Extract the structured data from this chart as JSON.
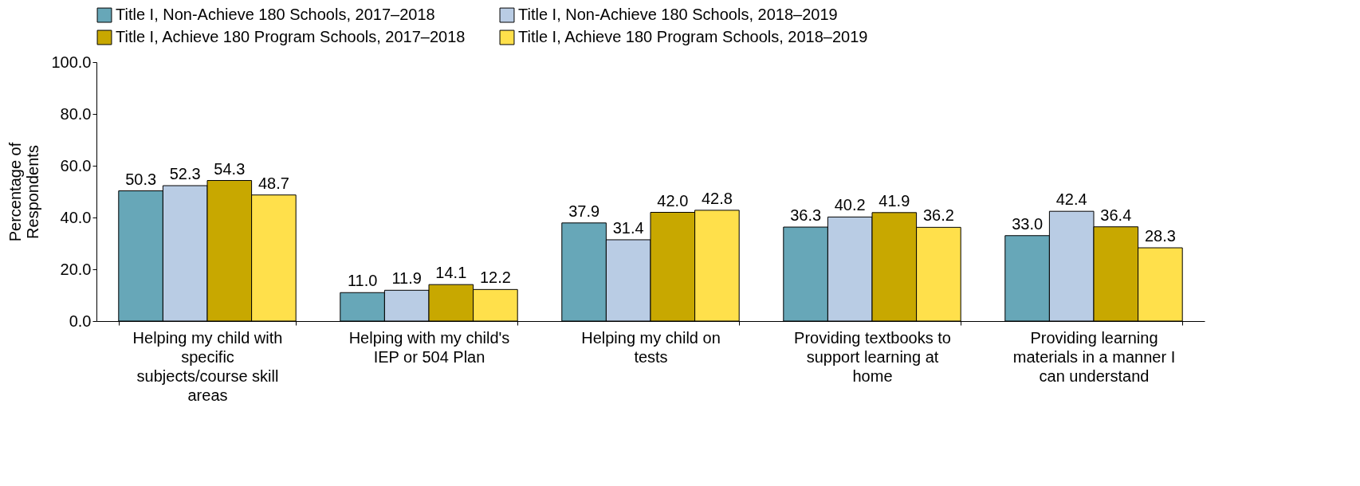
{
  "chart_data": {
    "type": "bar",
    "ylabel": "Percentage of Respondents",
    "categories": [
      "Helping my child with specific subjects/course skill areas",
      "Helping with my child's IEP or 504 Plan",
      "Helping my child on tests",
      "Providing textbooks to support learning at home",
      "Providing learning materials in a manner I can understand"
    ],
    "series": [
      {
        "name": "Title I, Non-Achieve 180 Schools, 2017–2018",
        "color": "#67a7b8",
        "values": [
          50.3,
          11.0,
          37.9,
          36.3,
          33.0
        ],
        "value_labels": [
          "50.3",
          "11.0",
          "37.9",
          "36.3",
          "33.0"
        ]
      },
      {
        "name": "Title I, Non-Achieve 180 Schools, 2018–2019",
        "color": "#b9cce4",
        "values": [
          52.3,
          11.9,
          31.4,
          40.2,
          42.4
        ],
        "value_labels": [
          "52.3",
          "11.9",
          "31.4",
          "40.2",
          "42.4"
        ]
      },
      {
        "name": "Title I, Achieve 180 Program Schools, 2017–2018",
        "color": "#c8a800",
        "values": [
          54.3,
          14.1,
          42.0,
          41.9,
          36.4
        ],
        "value_labels": [
          "54.3",
          "14.1",
          "42.0",
          "41.9",
          "36.4"
        ]
      },
      {
        "name": "Title I, Achieve 180 Program Schools, 2018–2019",
        "color": "#ffe04b",
        "values": [
          48.7,
          12.2,
          42.8,
          36.2,
          28.3
        ],
        "value_labels": [
          "48.7",
          "12.2",
          "42.8",
          "36.2",
          "28.3"
        ]
      }
    ],
    "ylim": [
      0,
      100
    ],
    "yticks": [
      {
        "value": 0,
        "label": "0.0"
      },
      {
        "value": 20,
        "label": "20.0"
      },
      {
        "value": 40,
        "label": "40.0"
      },
      {
        "value": 60,
        "label": "60.0"
      },
      {
        "value": 80,
        "label": "80.0"
      },
      {
        "value": 100,
        "label": "100.0"
      }
    ],
    "grid": false,
    "legend": "top"
  }
}
